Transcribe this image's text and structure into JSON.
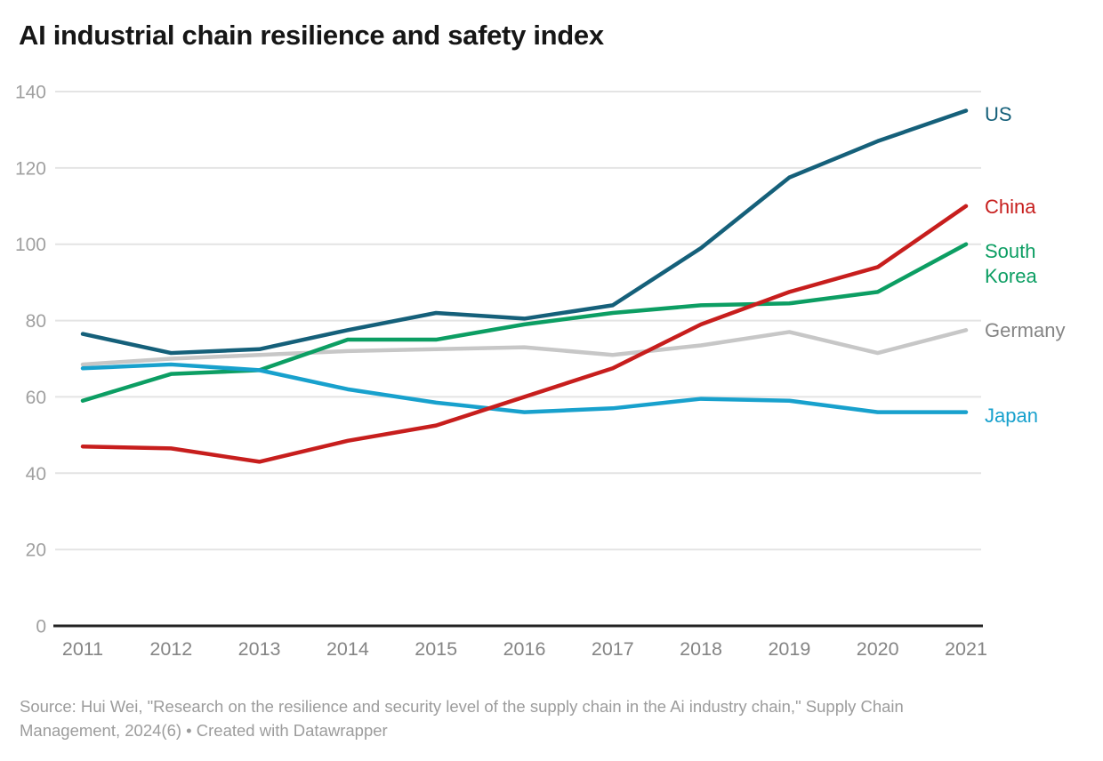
{
  "header": {
    "title": "AI industrial chain resilience and safety index"
  },
  "chart_data": {
    "type": "line",
    "title": "AI industrial chain resilience and safety index",
    "x": [
      2011,
      2012,
      2013,
      2014,
      2015,
      2016,
      2017,
      2018,
      2019,
      2020,
      2021
    ],
    "series": [
      {
        "name": "Germany",
        "color": "#c7c7c7",
        "label_color": "#858585",
        "values": [
          68.5,
          70,
          71,
          72,
          72.5,
          73,
          71,
          73.5,
          77,
          71.5,
          77.5
        ]
      },
      {
        "name": "South Korea",
        "color": "#0c9e63",
        "label_color": "#0c9e63",
        "values": [
          59,
          66,
          67,
          75,
          75,
          79,
          82,
          84,
          84.5,
          87.5,
          100
        ]
      },
      {
        "name": "Japan",
        "color": "#18a1cd",
        "label_color": "#18a1cd",
        "values": [
          67.5,
          68.5,
          67,
          62,
          58.5,
          56,
          57,
          59.5,
          59,
          56,
          56
        ]
      },
      {
        "name": "US",
        "color": "#15607a",
        "label_color": "#15607a",
        "values": [
          76.5,
          71.5,
          72.5,
          77.5,
          82,
          80.5,
          84,
          99,
          117.5,
          127,
          135
        ]
      },
      {
        "name": "China",
        "color": "#c71e1d",
        "label_color": "#c71e1d",
        "values": [
          47,
          46.5,
          43,
          48.5,
          52.5,
          60,
          67.5,
          79,
          87.5,
          94,
          110
        ]
      }
    ],
    "ylim": [
      0,
      140
    ],
    "yticks": [
      0,
      20,
      40,
      60,
      80,
      100,
      120,
      140
    ],
    "xlabel": "",
    "ylabel": "",
    "grid": "horizontal-only",
    "legend_position": "inline-labels-right-of-line-ends"
  },
  "footer": {
    "source_line1": "Source: Hui Wei, \"Research on the resilience and security level of the supply chain in the Ai industry chain,\" Supply Chain",
    "source_line2": "Management, 2024(6) • Created with Datawrapper"
  }
}
